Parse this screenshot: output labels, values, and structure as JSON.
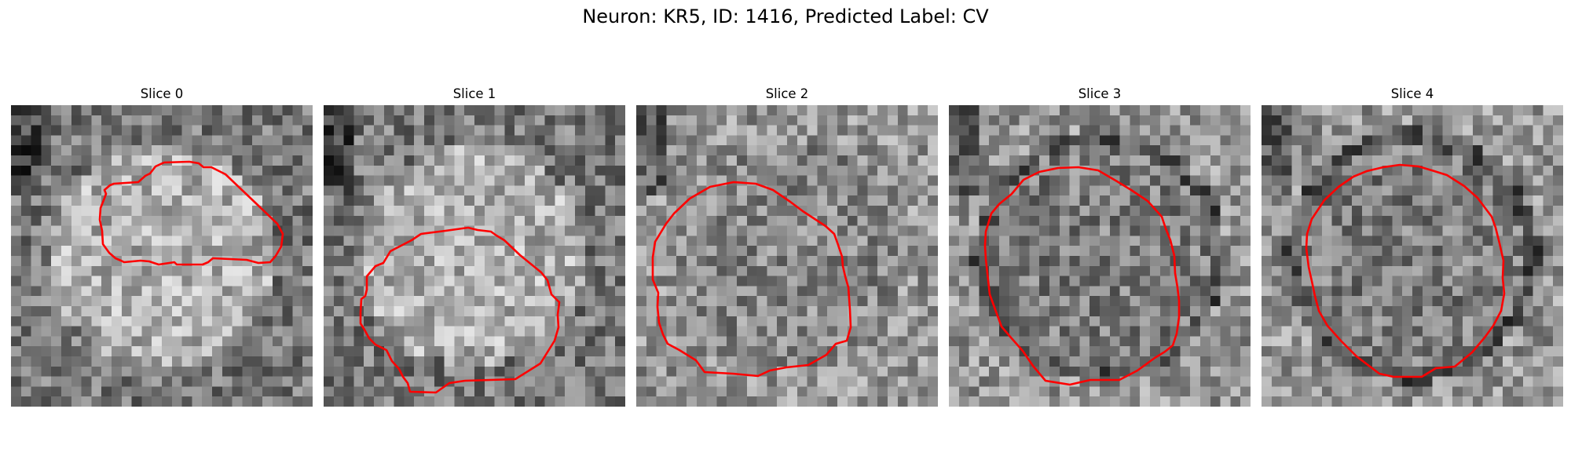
{
  "figure": {
    "title": "Neuron: KR5, ID: 1416, Predicted Label: CV",
    "contour_color": "#ff0000"
  },
  "panels": [
    {
      "title": "Slice 0"
    },
    {
      "title": "Slice 1"
    },
    {
      "title": "Slice 2"
    },
    {
      "title": "Slice 3"
    },
    {
      "title": "Slice 4"
    }
  ]
}
